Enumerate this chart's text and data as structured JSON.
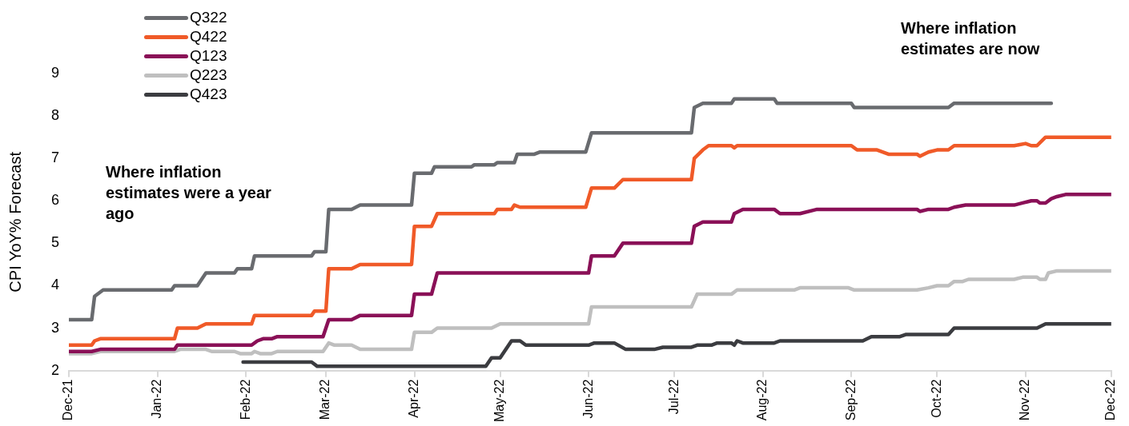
{
  "chart_data": {
    "type": "line",
    "ylabel": "CPI YoY% Forecast",
    "legend": "top left",
    "grid": false,
    "line_style": "solid",
    "marker": "none",
    "xlim": [
      "2021-12-01",
      "2022-12-01"
    ],
    "xticks": [
      {
        "value": "2021-12-01",
        "label": "Dec-21"
      },
      {
        "value": "2022-01-01",
        "label": "Jan-22"
      },
      {
        "value": "2022-02-01",
        "label": "Feb-22"
      },
      {
        "value": "2022-03-01",
        "label": "Mar-22"
      },
      {
        "value": "2022-04-01",
        "label": "Apr-22"
      },
      {
        "value": "2022-05-01",
        "label": "May-22"
      },
      {
        "value": "2022-06-01",
        "label": "Jun-22"
      },
      {
        "value": "2022-07-01",
        "label": "Jul-22"
      },
      {
        "value": "2022-08-01",
        "label": "Aug-22"
      },
      {
        "value": "2022-09-01",
        "label": "Sep-22"
      },
      {
        "value": "2022-10-01",
        "label": "Oct-22"
      },
      {
        "value": "2022-11-01",
        "label": "Nov-22"
      },
      {
        "value": "2022-12-01",
        "label": "Dec-22"
      }
    ],
    "ylim": [
      2,
      9
    ],
    "yticks": [
      2,
      3,
      4,
      5,
      6,
      7,
      8,
      9
    ],
    "annotations": [
      "Where inflation estimates were a year ago",
      "Where inflation estimates are now"
    ],
    "series": [
      {
        "name": "Q322",
        "color": "#696b6f",
        "x": [
          "2021-12-01",
          "2021-12-09",
          "2021-12-10",
          "2021-12-13",
          "2022-01-06",
          "2022-01-07",
          "2022-01-15",
          "2022-01-18",
          "2022-01-28",
          "2022-01-29",
          "2022-02-03",
          "2022-02-04",
          "2022-02-24",
          "2022-02-25",
          "2022-03-01",
          "2022-03-02",
          "2022-03-10",
          "2022-03-13",
          "2022-03-31",
          "2022-04-01",
          "2022-04-07",
          "2022-04-08",
          "2022-04-21",
          "2022-04-22",
          "2022-04-29",
          "2022-04-30",
          "2022-05-06",
          "2022-05-07",
          "2022-05-13",
          "2022-05-15",
          "2022-05-31",
          "2022-06-02",
          "2022-07-07",
          "2022-07-08",
          "2022-07-11",
          "2022-07-21",
          "2022-07-22",
          "2022-08-05",
          "2022-08-06",
          "2022-09-01",
          "2022-09-02",
          "2022-10-05",
          "2022-10-07",
          "2022-11-10"
        ],
        "values": [
          3.2,
          3.2,
          3.75,
          3.9,
          3.9,
          4.0,
          4.0,
          4.3,
          4.3,
          4.4,
          4.4,
          4.7,
          4.7,
          4.8,
          4.8,
          5.8,
          5.8,
          5.9,
          5.9,
          6.65,
          6.65,
          6.8,
          6.8,
          6.85,
          6.85,
          6.9,
          6.9,
          7.1,
          7.1,
          7.15,
          7.15,
          7.6,
          7.6,
          8.2,
          8.3,
          8.3,
          8.4,
          8.4,
          8.3,
          8.3,
          8.2,
          8.2,
          8.3,
          8.3
        ]
      },
      {
        "name": "Q422",
        "color": "#f05a28",
        "x": [
          "2021-12-01",
          "2021-12-09",
          "2021-12-10",
          "2021-12-12",
          "2022-01-07",
          "2022-01-08",
          "2022-01-15",
          "2022-01-18",
          "2022-02-03",
          "2022-02-04",
          "2022-02-24",
          "2022-02-25",
          "2022-03-01",
          "2022-03-02",
          "2022-03-10",
          "2022-03-13",
          "2022-03-31",
          "2022-04-01",
          "2022-04-07",
          "2022-04-09",
          "2022-04-29",
          "2022-04-30",
          "2022-05-05",
          "2022-05-06",
          "2022-05-08",
          "2022-05-31",
          "2022-06-02",
          "2022-06-10",
          "2022-06-13",
          "2022-07-07",
          "2022-07-08",
          "2022-07-11",
          "2022-07-13",
          "2022-07-21",
          "2022-07-22",
          "2022-07-23",
          "2022-09-01",
          "2022-09-03",
          "2022-09-10",
          "2022-09-14",
          "2022-09-24",
          "2022-09-25",
          "2022-09-28",
          "2022-10-01",
          "2022-10-05",
          "2022-10-07",
          "2022-10-28",
          "2022-11-01",
          "2022-11-03",
          "2022-11-05",
          "2022-11-08",
          "2022-12-01"
        ],
        "values": [
          2.6,
          2.6,
          2.7,
          2.75,
          2.75,
          3.0,
          3.0,
          3.1,
          3.1,
          3.3,
          3.3,
          3.4,
          3.4,
          4.4,
          4.4,
          4.5,
          4.5,
          5.4,
          5.4,
          5.7,
          5.7,
          5.8,
          5.8,
          5.9,
          5.85,
          5.85,
          6.3,
          6.3,
          6.5,
          6.5,
          7.0,
          7.2,
          7.3,
          7.3,
          7.25,
          7.3,
          7.3,
          7.2,
          7.2,
          7.1,
          7.1,
          7.05,
          7.15,
          7.2,
          7.2,
          7.3,
          7.3,
          7.35,
          7.3,
          7.3,
          7.5,
          7.5
        ]
      },
      {
        "name": "Q123",
        "color": "#8a1057",
        "x": [
          "2021-12-01",
          "2021-12-09",
          "2021-12-12",
          "2022-01-07",
          "2022-01-08",
          "2022-02-03",
          "2022-02-05",
          "2022-02-07",
          "2022-02-10",
          "2022-02-12",
          "2022-02-28",
          "2022-03-02",
          "2022-03-10",
          "2022-03-13",
          "2022-03-31",
          "2022-04-01",
          "2022-04-07",
          "2022-04-09",
          "2022-06-01",
          "2022-06-02",
          "2022-06-10",
          "2022-06-13",
          "2022-07-07",
          "2022-07-08",
          "2022-07-11",
          "2022-07-21",
          "2022-07-22",
          "2022-07-25",
          "2022-08-05",
          "2022-08-07",
          "2022-08-14",
          "2022-08-20",
          "2022-09-24",
          "2022-09-25",
          "2022-09-28",
          "2022-10-05",
          "2022-10-07",
          "2022-10-11",
          "2022-10-28",
          "2022-10-31",
          "2022-11-03",
          "2022-11-05",
          "2022-11-06",
          "2022-11-08",
          "2022-11-10",
          "2022-11-12",
          "2022-11-15",
          "2022-12-01"
        ],
        "values": [
          2.45,
          2.45,
          2.5,
          2.5,
          2.6,
          2.6,
          2.7,
          2.75,
          2.75,
          2.8,
          2.8,
          3.2,
          3.2,
          3.3,
          3.3,
          3.8,
          3.8,
          4.3,
          4.3,
          4.7,
          4.7,
          5.0,
          5.0,
          5.4,
          5.5,
          5.5,
          5.7,
          5.8,
          5.8,
          5.7,
          5.7,
          5.8,
          5.8,
          5.75,
          5.8,
          5.8,
          5.85,
          5.9,
          5.9,
          5.95,
          6.0,
          6.0,
          5.95,
          5.95,
          6.05,
          6.1,
          6.15,
          6.15
        ]
      },
      {
        "name": "Q223",
        "color": "#bfbfbf",
        "x": [
          "2021-12-01",
          "2021-12-09",
          "2021-12-12",
          "2022-01-07",
          "2022-01-09",
          "2022-01-18",
          "2022-01-20",
          "2022-01-28",
          "2022-01-30",
          "2022-02-03",
          "2022-02-04",
          "2022-02-06",
          "2022-02-10",
          "2022-02-12",
          "2022-02-28",
          "2022-03-02",
          "2022-03-04",
          "2022-03-10",
          "2022-03-13",
          "2022-03-31",
          "2022-04-01",
          "2022-04-07",
          "2022-04-09",
          "2022-04-28",
          "2022-05-01",
          "2022-06-01",
          "2022-06-02",
          "2022-07-07",
          "2022-07-09",
          "2022-07-21",
          "2022-07-23",
          "2022-08-12",
          "2022-08-14",
          "2022-08-31",
          "2022-09-02",
          "2022-09-24",
          "2022-09-28",
          "2022-10-01",
          "2022-10-05",
          "2022-10-07",
          "2022-10-10",
          "2022-10-12",
          "2022-10-28",
          "2022-10-31",
          "2022-11-05",
          "2022-11-06",
          "2022-11-08",
          "2022-11-09",
          "2022-11-12",
          "2022-12-01"
        ],
        "values": [
          2.4,
          2.4,
          2.45,
          2.45,
          2.5,
          2.5,
          2.45,
          2.45,
          2.4,
          2.4,
          2.45,
          2.4,
          2.4,
          2.45,
          2.45,
          2.65,
          2.6,
          2.6,
          2.5,
          2.5,
          2.9,
          2.9,
          3.0,
          3.0,
          3.1,
          3.1,
          3.5,
          3.5,
          3.8,
          3.8,
          3.9,
          3.9,
          3.95,
          3.95,
          3.9,
          3.9,
          3.95,
          4.0,
          4.0,
          4.1,
          4.1,
          4.15,
          4.15,
          4.2,
          4.2,
          4.15,
          4.15,
          4.3,
          4.35,
          4.35
        ]
      },
      {
        "name": "Q423",
        "color": "#3b3c40",
        "x": [
          "2022-01-31",
          "2022-02-24",
          "2022-02-26",
          "2022-04-26",
          "2022-04-28",
          "2022-05-01",
          "2022-05-05",
          "2022-05-08",
          "2022-05-10",
          "2022-06-01",
          "2022-06-03",
          "2022-06-10",
          "2022-06-14",
          "2022-06-24",
          "2022-06-27",
          "2022-07-07",
          "2022-07-09",
          "2022-07-14",
          "2022-07-16",
          "2022-07-21",
          "2022-07-22",
          "2022-07-23",
          "2022-07-25",
          "2022-08-05",
          "2022-08-07",
          "2022-09-05",
          "2022-09-08",
          "2022-09-18",
          "2022-09-20",
          "2022-10-05",
          "2022-10-07",
          "2022-11-05",
          "2022-11-08",
          "2022-12-01"
        ],
        "values": [
          2.2,
          2.2,
          2.1,
          2.1,
          2.3,
          2.3,
          2.7,
          2.7,
          2.6,
          2.6,
          2.65,
          2.65,
          2.5,
          2.5,
          2.55,
          2.55,
          2.6,
          2.6,
          2.65,
          2.65,
          2.6,
          2.7,
          2.65,
          2.65,
          2.7,
          2.7,
          2.8,
          2.8,
          2.85,
          2.85,
          3.0,
          3.0,
          3.1,
          3.1
        ]
      }
    ]
  }
}
